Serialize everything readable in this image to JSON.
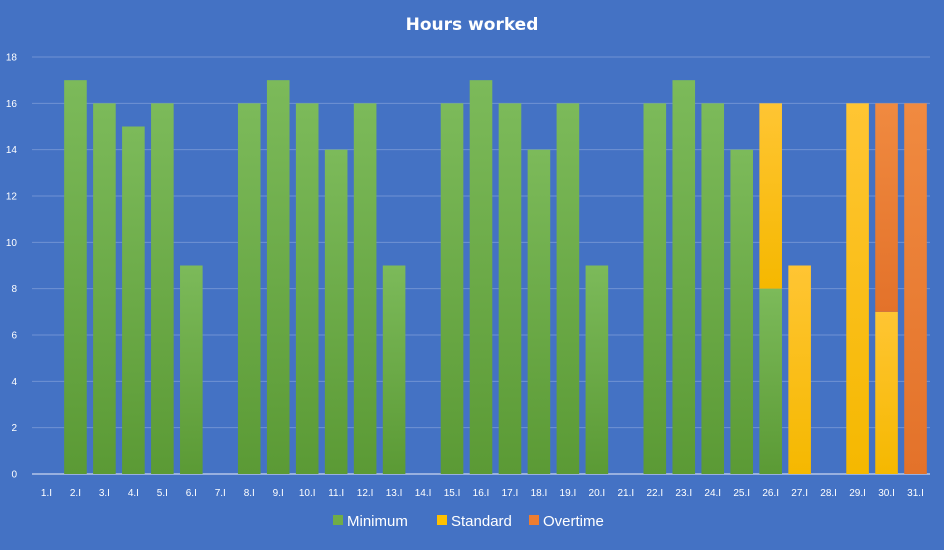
{
  "chart_data": {
    "type": "bar",
    "stacked": true,
    "title": "Hours worked",
    "xlabel": "",
    "ylabel": "",
    "ylim": [
      0,
      18
    ],
    "yticks": [
      0,
      2,
      4,
      6,
      8,
      10,
      12,
      14,
      16,
      18
    ],
    "grid": true,
    "legend_position": "bottom",
    "background_color": "#4472c4",
    "categories": [
      "1.I",
      "2.I",
      "3.I",
      "4.I",
      "5.I",
      "6.I",
      "7.I",
      "8.I",
      "9.I",
      "10.I",
      "11.I",
      "12.I",
      "13.I",
      "14.I",
      "15.I",
      "16.I",
      "17.I",
      "18.I",
      "19.I",
      "20.I",
      "21.I",
      "22.I",
      "23.I",
      "24.I",
      "25.I",
      "26.I",
      "27.I",
      "28.I",
      "29.I",
      "30.I",
      "31.I"
    ],
    "series": [
      {
        "name": "Minimum",
        "color": "#70ad47",
        "values": [
          0,
          17,
          16,
          15,
          16,
          9,
          0,
          16,
          17,
          16,
          14,
          16,
          9,
          0,
          16,
          17,
          16,
          14,
          16,
          9,
          0,
          16,
          17,
          16,
          14,
          8,
          0,
          0,
          0,
          0,
          0
        ]
      },
      {
        "name": "Standard",
        "color": "#ffc000",
        "values": [
          0,
          0,
          0,
          0,
          0,
          0,
          0,
          0,
          0,
          0,
          0,
          0,
          0,
          0,
          0,
          0,
          0,
          0,
          0,
          0,
          0,
          0,
          0,
          0,
          0,
          8,
          9,
          0,
          16,
          7,
          0
        ]
      },
      {
        "name": "Overtime",
        "color": "#ed7d31",
        "values": [
          0,
          0,
          0,
          0,
          0,
          0,
          0,
          0,
          0,
          0,
          0,
          0,
          0,
          0,
          0,
          0,
          0,
          0,
          0,
          0,
          0,
          0,
          0,
          0,
          0,
          0,
          0,
          0,
          0,
          9,
          16
        ]
      }
    ]
  }
}
